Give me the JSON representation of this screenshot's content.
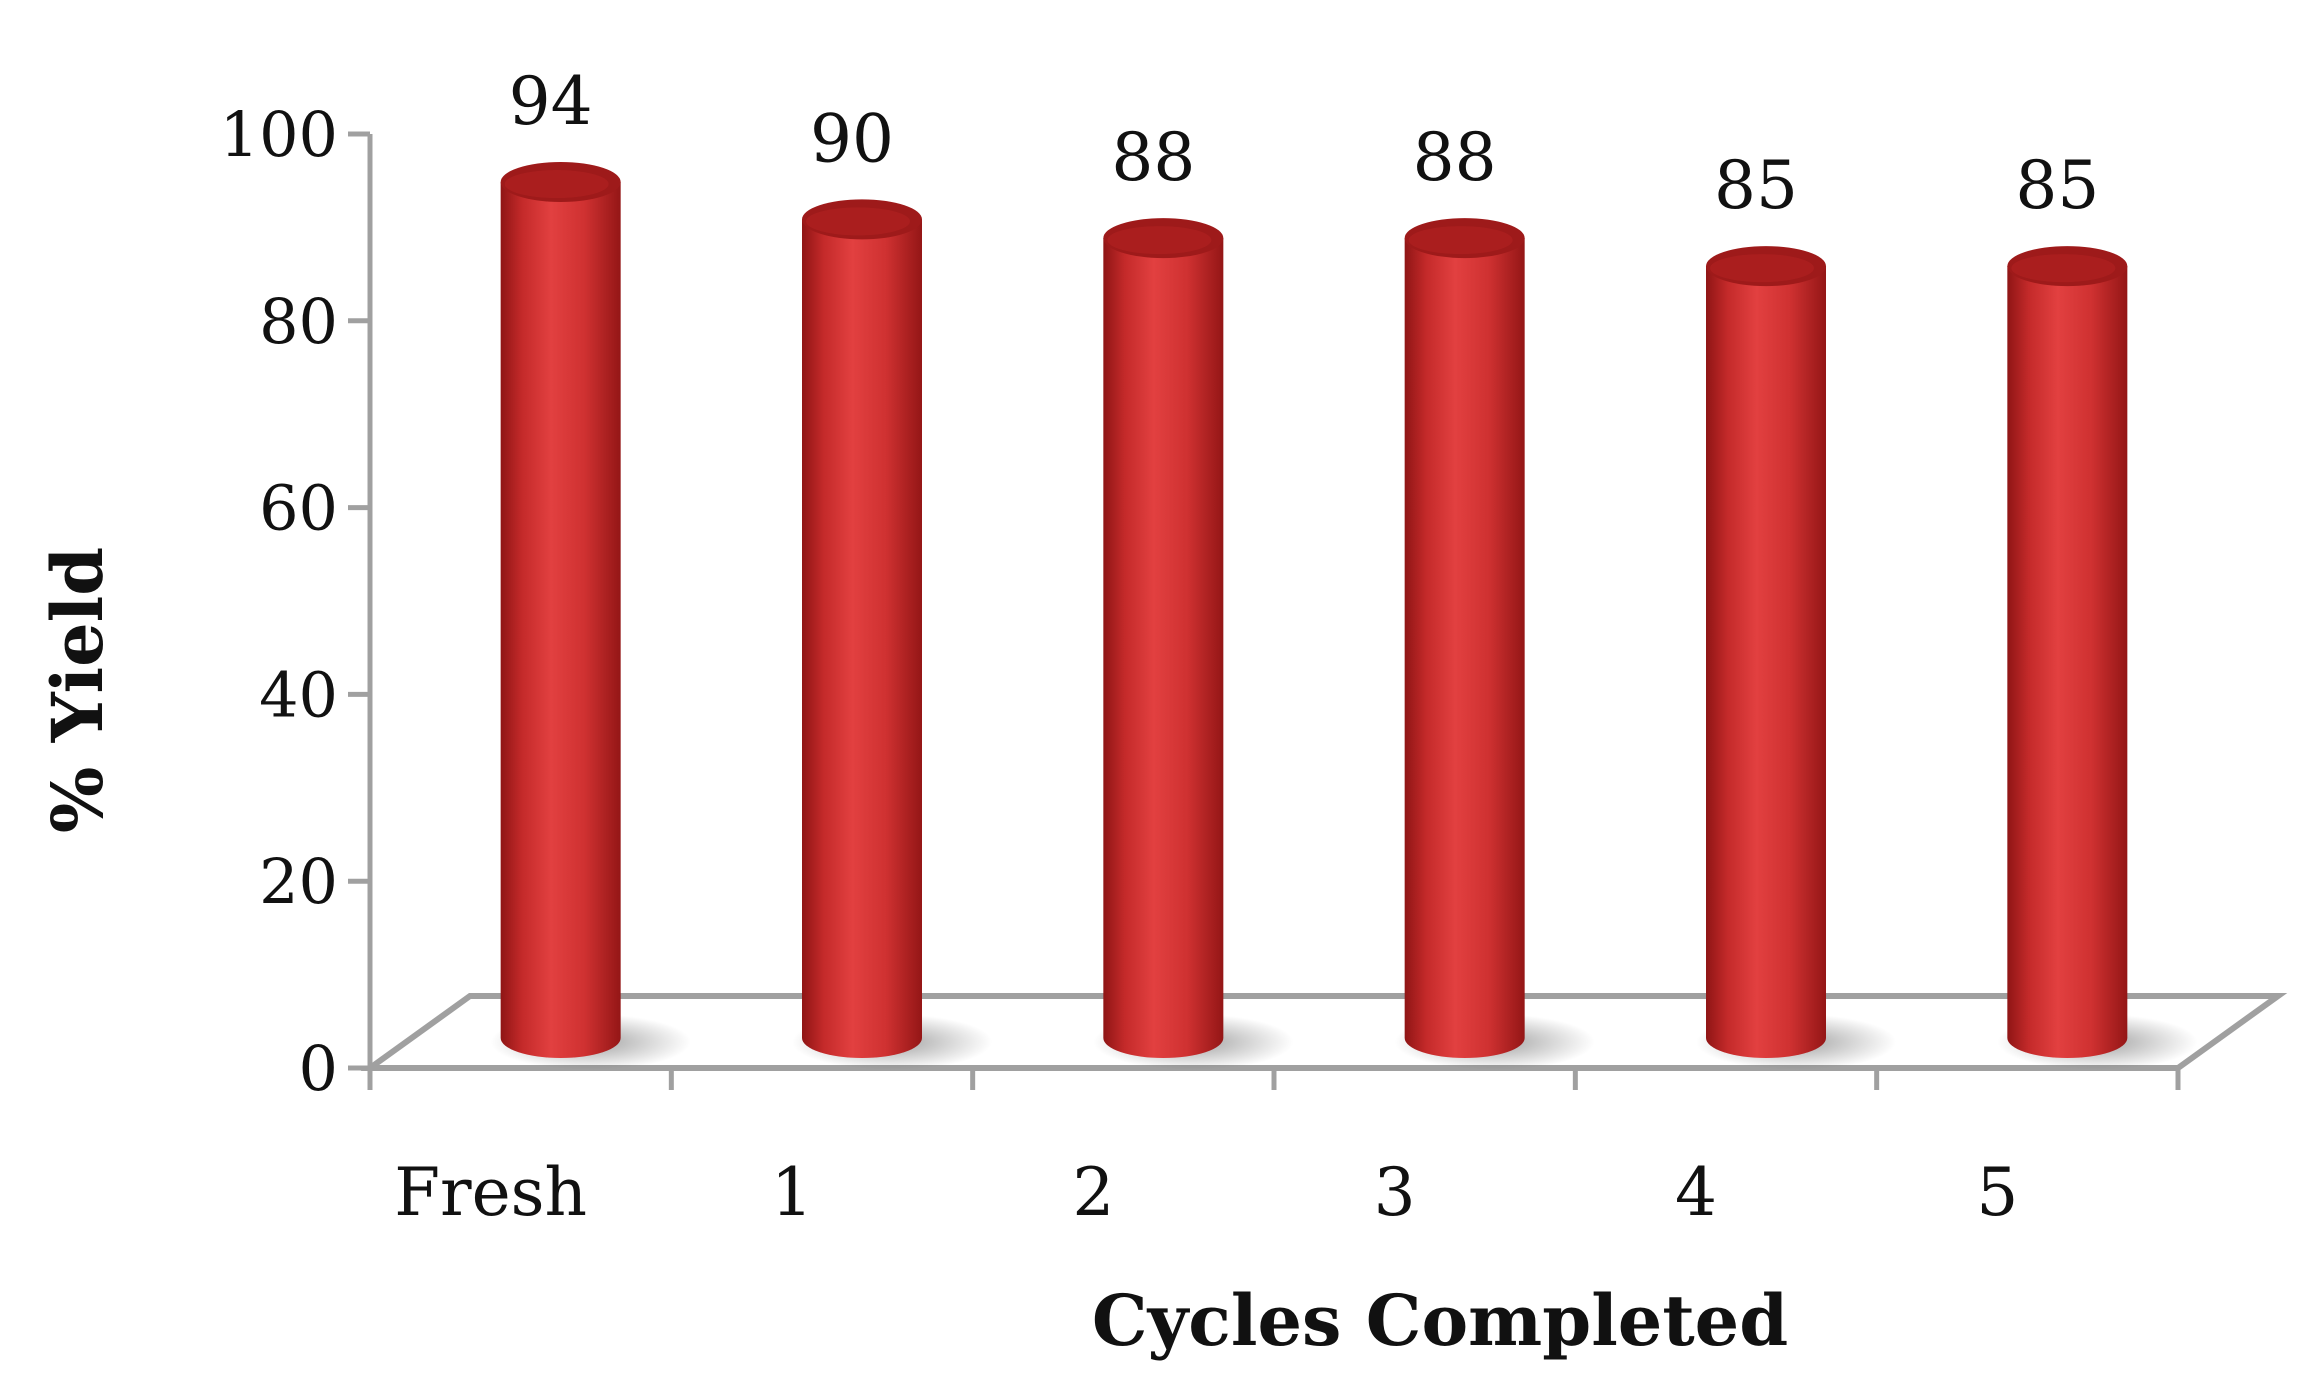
{
  "chart_data": {
    "type": "bar",
    "style": "3d-cylinder",
    "categories": [
      "Fresh",
      "1",
      "2",
      "3",
      "4",
      "5"
    ],
    "values": [
      94,
      90,
      88,
      88,
      85,
      85
    ],
    "data_labels": [
      "94",
      "90",
      "88",
      "88",
      "85",
      "85"
    ],
    "title": "",
    "xlabel": "Cycles Completed",
    "ylabel": "% Yield",
    "ylim": [
      0,
      100
    ],
    "yticks": [
      "0",
      "20",
      "40",
      "60",
      "80",
      "100"
    ],
    "grid": false,
    "legend": "none",
    "colors": {
      "bar": "#d33434",
      "bar_dark": "#9e1a1a",
      "axis": "#a0a0a0"
    }
  }
}
